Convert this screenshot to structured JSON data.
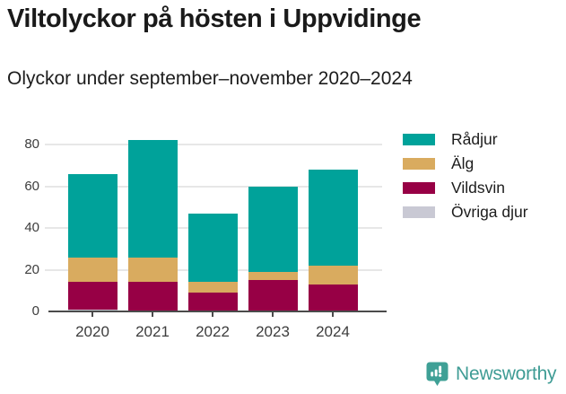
{
  "chart_data": {
    "type": "bar",
    "stacked": true,
    "title": "Viltolyckor på hösten i Uppvidinge",
    "subtitle": "Olyckor under september–november 2020–2024",
    "categories": [
      "2020",
      "2021",
      "2022",
      "2023",
      "2024"
    ],
    "series": [
      {
        "name": "Rådjur",
        "color": "#00a29a",
        "values": [
          40,
          56,
          33,
          41,
          46
        ]
      },
      {
        "name": "Älg",
        "color": "#d9ab5f",
        "values": [
          12,
          12,
          5,
          4,
          9
        ]
      },
      {
        "name": "Vildsvin",
        "color": "#970045",
        "values": [
          13,
          14,
          9,
          15,
          13
        ]
      },
      {
        "name": "Övriga djur",
        "color": "#c9c9d4",
        "values": [
          1,
          0,
          0,
          0,
          0
        ]
      }
    ],
    "totals": [
      66,
      82,
      47,
      60,
      68
    ],
    "yticks": [
      0,
      20,
      40,
      60,
      80
    ],
    "ylim": [
      0,
      87
    ],
    "xlabel": "",
    "ylabel": "",
    "grid": true,
    "legend_position": "right"
  },
  "footer": {
    "brand": "Newsworthy",
    "logo_icon": "newsworthy-bar-chart-bubble-icon",
    "brand_color": "#3f9c95"
  }
}
